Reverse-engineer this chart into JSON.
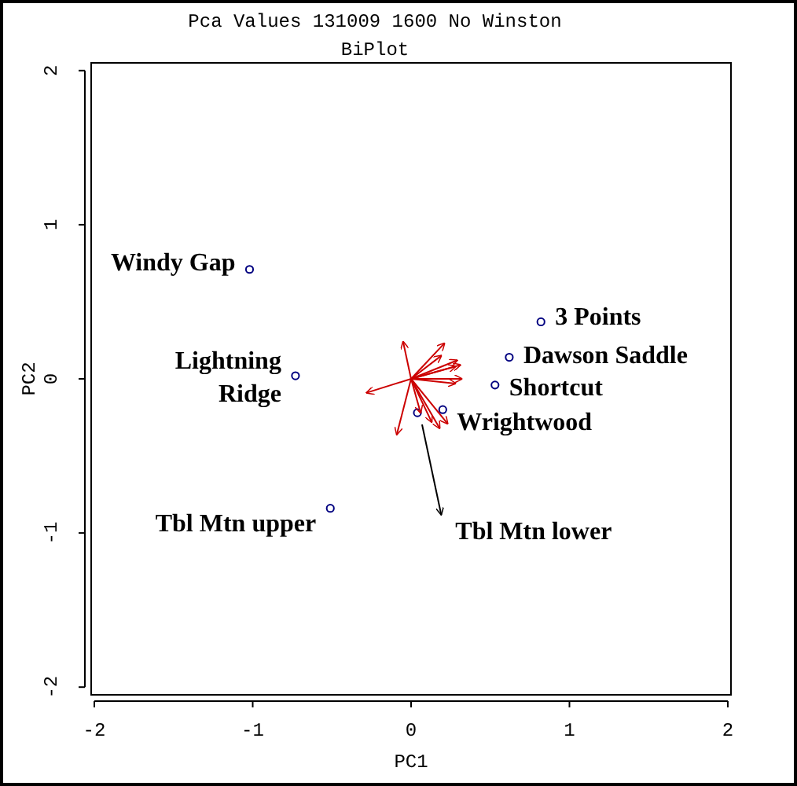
{
  "chart_data": {
    "type": "scatter",
    "title": "Pca Values 131009 1600 No Winston",
    "subtitle": "BiPlot",
    "xlabel": "PC1",
    "ylabel": "PC2",
    "xlim": [
      -2.02,
      2.02
    ],
    "ylim": [
      -2.05,
      2.05
    ],
    "xticks": [
      -2,
      -1,
      0,
      1,
      2
    ],
    "yticks": [
      -2,
      -1,
      0,
      1,
      2
    ],
    "grid": false,
    "marker": "circle",
    "series": [
      {
        "color": "#000080",
        "x": [
          -1.02,
          0.82,
          0.62,
          -0.73,
          0.53,
          0.2,
          0.04,
          -0.51
        ],
        "values": [
          0.71,
          0.37,
          0.14,
          0.02,
          -0.04,
          -0.2,
          -0.22,
          -0.84
        ]
      },
      {
        "type": "line",
        "color": "#cc0000",
        "marker": "none",
        "x": [
          0,
          -0.05
        ],
        "values": [
          0,
          0.24
        ]
      },
      {
        "type": "line",
        "color": "#cc0000",
        "marker": "none",
        "x": [
          0,
          0.21
        ],
        "values": [
          0,
          0.23
        ]
      },
      {
        "type": "line",
        "color": "#cc0000",
        "marker": "none",
        "x": [
          0,
          0.19
        ],
        "values": [
          0,
          0.15
        ]
      },
      {
        "type": "line",
        "color": "#cc0000",
        "marker": "none",
        "x": [
          0,
          0.29
        ],
        "values": [
          0,
          0.12
        ]
      },
      {
        "type": "line",
        "color": "#cc0000",
        "marker": "none",
        "x": [
          0,
          0.31
        ],
        "values": [
          0,
          0.09
        ]
      },
      {
        "type": "line",
        "color": "#cc0000",
        "marker": "none",
        "x": [
          0,
          0.28
        ],
        "values": [
          0,
          0.08
        ]
      },
      {
        "type": "line",
        "color": "#cc0000",
        "marker": "none",
        "x": [
          0,
          0.32
        ],
        "values": [
          0,
          0.0
        ]
      },
      {
        "type": "line",
        "color": "#cc0000",
        "marker": "none",
        "x": [
          0,
          0.28
        ],
        "values": [
          0,
          -0.03
        ]
      },
      {
        "type": "line",
        "color": "#cc0000",
        "marker": "none",
        "x": [
          0,
          -0.28
        ],
        "values": [
          0,
          -0.09
        ]
      },
      {
        "type": "line",
        "color": "#cc0000",
        "marker": "none",
        "x": [
          0,
          -0.09
        ],
        "values": [
          0,
          -0.36
        ]
      },
      {
        "type": "line",
        "color": "#cc0000",
        "marker": "none",
        "x": [
          0,
          0.06
        ],
        "values": [
          0,
          -0.22
        ]
      },
      {
        "type": "line",
        "color": "#cc0000",
        "marker": "none",
        "x": [
          0,
          0.13
        ],
        "values": [
          0,
          -0.28
        ]
      },
      {
        "type": "line",
        "color": "#cc0000",
        "marker": "none",
        "x": [
          0,
          0.18
        ],
        "values": [
          0,
          -0.32
        ]
      },
      {
        "type": "line",
        "color": "#cc0000",
        "marker": "none",
        "x": [
          0,
          0.23
        ],
        "values": [
          0,
          -0.29
        ]
      },
      {
        "type": "line",
        "color": "#000000",
        "marker": "none",
        "x": [
          0.07,
          0.19
        ],
        "values": [
          -0.3,
          -0.88
        ]
      }
    ],
    "annotations": [
      {
        "text": "Windy Gap",
        "x": -1.02,
        "y": 0.71
      },
      {
        "text": "3 Points",
        "x": 0.82,
        "y": 0.37
      },
      {
        "text": "Dawson Saddle",
        "x": 0.62,
        "y": 0.14
      },
      {
        "text": "Lightning\nRidge",
        "x": -0.73,
        "y": 0.02
      },
      {
        "text": "Shortcut",
        "x": 0.53,
        "y": -0.04
      },
      {
        "text": "Wrightwood",
        "x": 0.2,
        "y": -0.2
      },
      {
        "text": "Tbl Mtn upper",
        "x": -0.51,
        "y": -0.84
      },
      {
        "text": "Tbl Mtn lower",
        "x": 0.19,
        "y": -0.88
      }
    ]
  }
}
